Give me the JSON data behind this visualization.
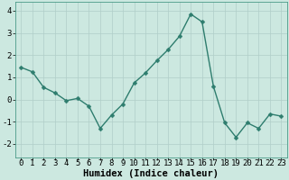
{
  "x": [
    0,
    1,
    2,
    3,
    4,
    5,
    6,
    7,
    8,
    9,
    10,
    11,
    12,
    13,
    14,
    15,
    16,
    17,
    18,
    19,
    20,
    21,
    22,
    23
  ],
  "y": [
    1.45,
    1.25,
    0.55,
    0.3,
    -0.05,
    0.05,
    -0.3,
    -1.3,
    -0.7,
    -0.2,
    0.75,
    1.2,
    1.75,
    2.25,
    2.85,
    3.85,
    3.5,
    0.6,
    -1.05,
    -1.7,
    -1.05,
    -1.3,
    -0.65,
    -0.75
  ],
  "line_color": "#2e7d6e",
  "marker": "D",
  "marker_size": 2.5,
  "bg_color": "#cce8e0",
  "grid_color": "#b0cec8",
  "xlabel": "Humidex (Indice chaleur)",
  "ylabel": "",
  "ylim": [
    -2.6,
    4.4
  ],
  "xlim": [
    -0.5,
    23.5
  ],
  "yticks": [
    -2,
    -1,
    0,
    1,
    2,
    3,
    4
  ],
  "xticks": [
    0,
    1,
    2,
    3,
    4,
    5,
    6,
    7,
    8,
    9,
    10,
    11,
    12,
    13,
    14,
    15,
    16,
    17,
    18,
    19,
    20,
    21,
    22,
    23
  ],
  "xlabel_fontsize": 7.5,
  "tick_fontsize": 6.5,
  "line_width": 1.0
}
